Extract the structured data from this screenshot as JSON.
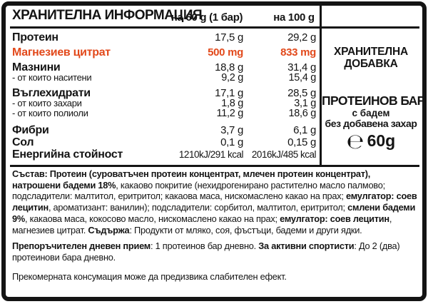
{
  "accent_color": "#e2491b",
  "table": {
    "title": "ХРАНИТЕЛНА ИНФОРМАЦИЯ",
    "col1_header": "на 60 g (1 бар)",
    "col2_header": "на 100 g",
    "rows": [
      {
        "label": "Протеин",
        "v60": "17,5 g",
        "v100": "29,2 g",
        "kind": "main"
      },
      {
        "label": "Магнезиев цитрат",
        "v60": "500 mg",
        "v100": "833 mg",
        "kind": "accent"
      },
      {
        "label": "Мазнини",
        "v60": "18,8 g",
        "v100": "31,4 g",
        "kind": "main"
      },
      {
        "label": "- от които наситени",
        "v60": "9,2 g",
        "v100": "15,4 g",
        "kind": "sub"
      },
      {
        "label": "Въглехидрати",
        "v60": "17,1 g",
        "v100": "28,5 g",
        "kind": "main"
      },
      {
        "label": "- от които захари",
        "v60": "1,8 g",
        "v100": "3,1 g",
        "kind": "sub"
      },
      {
        "label": "- от които полиоли",
        "v60": "11,2 g",
        "v100": "18,6 g",
        "kind": "sub"
      },
      {
        "label": "Фибри",
        "v60": "3,7 g",
        "v100": "6,1 g",
        "kind": "main"
      },
      {
        "label": "Сол",
        "v60": "0,1 g",
        "v100": "0,15 g",
        "kind": "main"
      },
      {
        "label": "Енергийна стойност",
        "v60": "1210kJ/291 kcal",
        "v100": "2016kJ/485 kcal",
        "kind": "energy"
      }
    ]
  },
  "sidebar": {
    "supplement_label": "ХРАНИТЕЛНА\nДОБАВКА",
    "product_name": "ПРОТЕИНОВ БАР",
    "variant": "с бадем",
    "claim": "без добавена захар",
    "estimated_sign": "℮",
    "net_weight": "60g"
  },
  "composition": {
    "segments": [
      {
        "b": true,
        "t": "Състав: Протеин (суроватъчен протеин концентрат, млечен протеин концентрат), натрошени бадеми 18%"
      },
      {
        "b": false,
        "t": ", какаово покритие (нехидрогенирано растително масло палмово; подсладители: малтитол, еритритол; какаова маса, нискомаслено какао на прах; "
      },
      {
        "b": true,
        "t": "емулгатор: соев лецитин"
      },
      {
        "b": false,
        "t": ", ароматизант: ванилин); подсладители: сорбитол, малтитол, еритритол; "
      },
      {
        "b": true,
        "t": "смлени бадеми 9%"
      },
      {
        "b": false,
        "t": ", какаова маса, кокосово масло, нискомаслено какао на прах; "
      },
      {
        "b": true,
        "t": "емулгатор: соев лецитин"
      },
      {
        "b": false,
        "t": ", магнезиев цитрат. "
      },
      {
        "b": true,
        "t": "Съдържа"
      },
      {
        "b": false,
        "t": ": Продукти от мляко, соя, фъстъци, бадеми и други ядки."
      }
    ]
  },
  "daily_intake": {
    "segments": [
      {
        "b": true,
        "t": "Препоръчителен дневен прием"
      },
      {
        "b": false,
        "t": ": 1 протеинов бар дневно. "
      },
      {
        "b": true,
        "t": "За активни спортисти"
      },
      {
        "b": false,
        "t": ": До 2 (два) протеинови бара дневно."
      }
    ]
  },
  "warning": {
    "text": "Прекомерната консумация може да предизвика слабителен ефект."
  }
}
